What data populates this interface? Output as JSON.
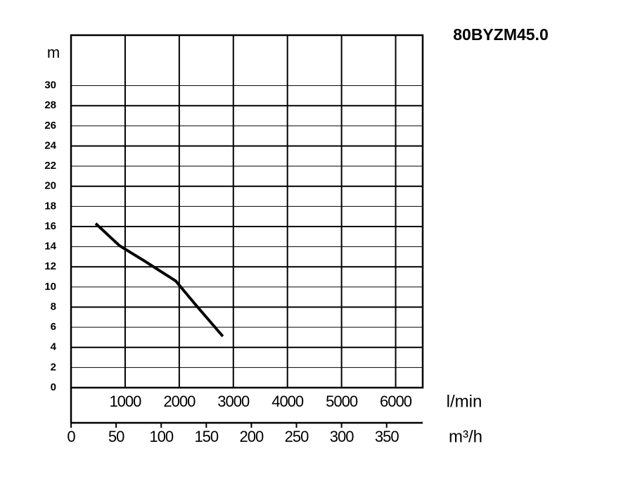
{
  "chart_data": {
    "type": "line",
    "title": "80BYZM45.0",
    "y_label": "m",
    "x_label": "l/min",
    "x2_label": "m³/h",
    "xlim": [
      0,
      6500
    ],
    "xticks": [
      1000,
      2000,
      3000,
      4000,
      5000,
      6000
    ],
    "x2lim": [
      0,
      390
    ],
    "x2ticks": [
      0,
      50,
      100,
      150,
      200,
      250,
      300,
      350
    ],
    "ylim": [
      0,
      35
    ],
    "yticks": [
      0,
      2,
      4,
      6,
      8,
      10,
      12,
      14,
      16,
      18,
      20,
      22,
      24,
      26,
      28,
      30
    ],
    "grid": true,
    "series": [
      {
        "color": "#000000",
        "x": [
          455,
          896,
          1350,
          1935,
          2325,
          2805
        ],
        "values": [
          16.3,
          14.1,
          12.6,
          10.6,
          8.1,
          5.1
        ]
      }
    ]
  }
}
